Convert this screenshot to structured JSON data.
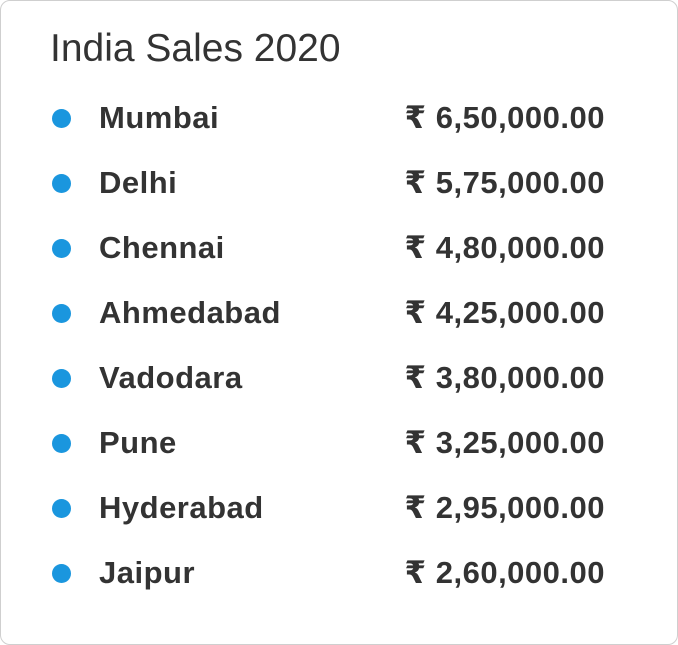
{
  "title": "India Sales 2020",
  "items": [
    {
      "name": "Mumbai",
      "amount": "₹ 6,50,000.00"
    },
    {
      "name": "Delhi",
      "amount": "₹ 5,75,000.00"
    },
    {
      "name": "Chennai",
      "amount": "₹ 4,80,000.00"
    },
    {
      "name": "Ahmedabad",
      "amount": "₹ 4,25,000.00"
    },
    {
      "name": "Vadodara",
      "amount": "₹ 3,80,000.00"
    },
    {
      "name": "Pune",
      "amount": "₹ 3,25,000.00"
    },
    {
      "name": "Hyderabad",
      "amount": "₹ 2,95,000.00"
    },
    {
      "name": "Jaipur",
      "amount": "₹ 2,60,000.00"
    }
  ]
}
